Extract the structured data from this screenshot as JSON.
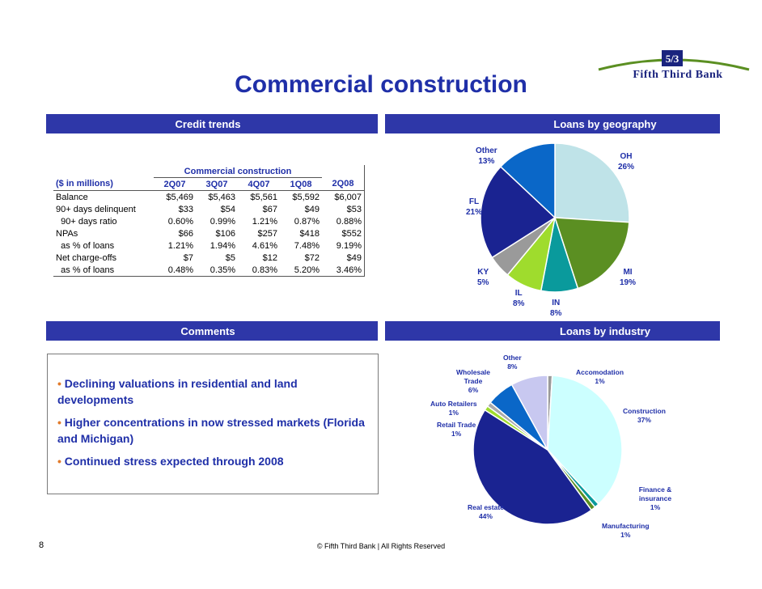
{
  "title": "Commercial construction",
  "logo_text": "Fifth Third Bank",
  "sections": {
    "credit_trends": "Credit trends",
    "loans_by_geography": "Loans by geography",
    "comments": "Comments",
    "loans_by_industry": "Loans by industry"
  },
  "table": {
    "group_header": "Commercial construction",
    "columns": [
      "($ in millions)",
      "2Q07",
      "3Q07",
      "4Q07",
      "1Q08",
      "2Q08"
    ],
    "rows": [
      [
        "Balance",
        "$5,469",
        "$5,463",
        "$5,561",
        "$5,592",
        "$6,007"
      ],
      [
        "90+ days delinquent",
        "$33",
        "$54",
        "$67",
        "$49",
        "$53"
      ],
      [
        "  90+ days ratio",
        "0.60%",
        "0.99%",
        "1.21%",
        "0.87%",
        "0.88%"
      ],
      [
        "NPAs",
        "$66",
        "$106",
        "$257",
        "$418",
        "$552"
      ],
      [
        "  as % of loans",
        "1.21%",
        "1.94%",
        "4.61%",
        "7.48%",
        "9.19%"
      ],
      [
        "Net charge-offs",
        "$7",
        "$5",
        "$12",
        "$72",
        "$49"
      ],
      [
        "  as % of loans",
        "0.48%",
        "0.35%",
        "0.83%",
        "5.20%",
        "3.46%"
      ]
    ]
  },
  "comments": [
    "Declining valuations in residential and land developments",
    "Higher concentrations in now stressed markets (Florida and Michigan)",
    "Continued stress expected through 2008"
  ],
  "chart_data": [
    {
      "type": "pie",
      "title": "Loans by geography",
      "slices": [
        {
          "label": "OH",
          "value": 26,
          "display": "26%",
          "color": "#bfe3e8"
        },
        {
          "label": "MI",
          "value": 19,
          "display": "19%",
          "color": "#5b8f22"
        },
        {
          "label": "IN",
          "value": 8,
          "display": "8%",
          "color": "#0a9a9c"
        },
        {
          "label": "IL",
          "value": 8,
          "display": "8%",
          "color": "#9fdc2d"
        },
        {
          "label": "KY",
          "value": 5,
          "display": "5%",
          "color": "#9a9a9a"
        },
        {
          "label": "FL",
          "value": 21,
          "display": "21%",
          "color": "#1a2391"
        },
        {
          "label": "Other",
          "value": 13,
          "display": "13%",
          "color": "#0a67c8"
        }
      ]
    },
    {
      "type": "pie",
      "title": "Loans by industry",
      "slices": [
        {
          "label": "Accomodation",
          "value": 1,
          "display": "1%",
          "color": "#9a9a9a"
        },
        {
          "label": "Construction",
          "value": 37,
          "display": "37%",
          "color": "#ccffff"
        },
        {
          "label": "Finance & insurance",
          "value": 1,
          "display": "1%",
          "color": "#0a9a9c"
        },
        {
          "label": "Manufacturing",
          "value": 1,
          "display": "1%",
          "color": "#5b8f22"
        },
        {
          "label": "Real estate",
          "value": 44,
          "display": "44%",
          "color": "#1a2391"
        },
        {
          "label": "Retail Trade",
          "value": 1,
          "display": "1%",
          "color": "#9fdc2d"
        },
        {
          "label": "Auto Retailers",
          "value": 1,
          "display": "1%",
          "color": "#aaaaaa"
        },
        {
          "label": "Wholesale Trade",
          "value": 6,
          "display": "6%",
          "color": "#0a67c8"
        },
        {
          "label": "Other",
          "value": 8,
          "display": "8%",
          "color": "#c8c8f0"
        }
      ]
    }
  ],
  "footer": {
    "page_number": "8",
    "copyright": "© Fifth Third Bank | All Rights Reserved"
  }
}
